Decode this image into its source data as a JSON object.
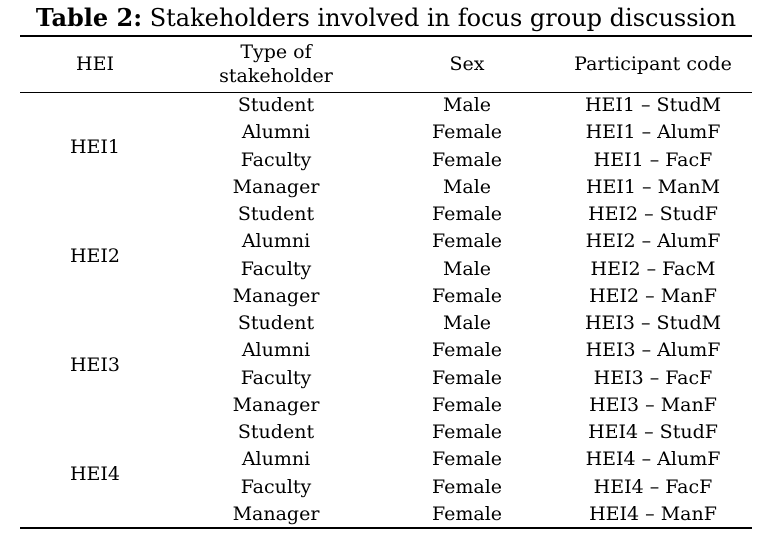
{
  "caption": {
    "label": "Table 2:",
    "text": " Stakeholders involved in focus group discussion"
  },
  "headers": {
    "hei": "HEI",
    "type_line1": "Type of",
    "type_line2": "stakeholder",
    "sex": "Sex",
    "code": "Participant code"
  },
  "groups": [
    {
      "hei": "HEI1",
      "rows": [
        {
          "type": "Student",
          "sex": "Male",
          "code": "HEI1 – StudM"
        },
        {
          "type": "Alumni",
          "sex": "Female",
          "code": "HEI1 – AlumF"
        },
        {
          "type": "Faculty",
          "sex": "Female",
          "code": "HEI1 – FacF"
        },
        {
          "type": "Manager",
          "sex": "Male",
          "code": "HEI1 – ManM"
        }
      ]
    },
    {
      "hei": "HEI2",
      "rows": [
        {
          "type": "Student",
          "sex": "Female",
          "code": "HEI2 – StudF"
        },
        {
          "type": "Alumni",
          "sex": "Female",
          "code": "HEI2 – AlumF"
        },
        {
          "type": "Faculty",
          "sex": "Male",
          "code": "HEI2 – FacM"
        },
        {
          "type": "Manager",
          "sex": "Female",
          "code": "HEI2 – ManF"
        }
      ]
    },
    {
      "hei": "HEI3",
      "rows": [
        {
          "type": "Student",
          "sex": "Male",
          "code": "HEI3 – StudM"
        },
        {
          "type": "Alumni",
          "sex": "Female",
          "code": "HEI3 – AlumF"
        },
        {
          "type": "Faculty",
          "sex": "Female",
          "code": "HEI3 – FacF"
        },
        {
          "type": "Manager",
          "sex": "Female",
          "code": "HEI3 – ManF"
        }
      ]
    },
    {
      "hei": "HEI4",
      "rows": [
        {
          "type": "Student",
          "sex": "Female",
          "code": "HEI4 – StudF"
        },
        {
          "type": "Alumni",
          "sex": "Female",
          "code": "HEI4 – AlumF"
        },
        {
          "type": "Faculty",
          "sex": "Female",
          "code": "HEI4 – FacF"
        },
        {
          "type": "Manager",
          "sex": "Female",
          "code": "HEI4 – ManF"
        }
      ]
    }
  ]
}
